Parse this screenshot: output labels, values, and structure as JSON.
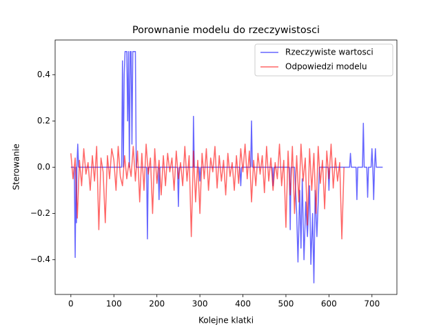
{
  "chart_data": {
    "type": "line",
    "title": "Porownanie modelu do rzeczywistosci",
    "x_label": "Kolejne klatki",
    "y_label": "Sterowanie",
    "xlim": [
      -36.6,
      758
    ],
    "ylim": [
      -0.55,
      0.55
    ],
    "xticks": [
      0,
      100,
      200,
      300,
      400,
      500,
      600,
      700
    ],
    "yticks": [
      {
        "value": -0.4,
        "label": "−0.4"
      },
      {
        "value": -0.2,
        "label": "−0.2"
      },
      {
        "value": 0,
        "label": "0.0"
      },
      {
        "value": 0.2,
        "label": "0.2"
      },
      {
        "value": 0.4,
        "label": "0.4"
      }
    ],
    "legend": "upper right",
    "series": [
      {
        "name": "Rzeczywiste wartosci",
        "color": "#0000ff",
        "x": [
          0,
          8,
          10,
          12,
          13,
          14,
          16,
          18,
          118,
          120,
          122,
          124,
          126,
          130,
          132,
          134,
          136,
          138,
          140,
          142,
          144,
          150,
          152,
          176,
          178,
          180,
          203,
          205,
          207,
          248,
          250,
          252,
          284,
          285,
          287,
          298,
          300,
          302,
          393,
          395,
          397,
          418,
          420,
          422,
          468,
          470,
          472,
          508,
          510,
          512,
          520,
          525,
          528,
          532,
          535,
          538,
          542,
          546,
          550,
          555,
          558,
          562,
          565,
          568,
          572,
          578,
          598,
          600,
          602,
          648,
          650,
          652,
          663,
          665,
          667,
          678,
          680,
          682,
          688,
          690,
          692,
          698,
          700,
          702,
          704,
          706,
          708,
          710,
          725
        ],
        "values": [
          0,
          0,
          -0.39,
          0,
          -0.24,
          0,
          0.1,
          0,
          0,
          0.46,
          0,
          0.4,
          0.5,
          0.5,
          0.2,
          0.5,
          0,
          0.5,
          0.5,
          0.1,
          0.5,
          0.5,
          0,
          0,
          -0.31,
          0,
          0,
          -0.14,
          0,
          0,
          -0.17,
          0,
          0,
          0.22,
          0,
          0,
          -0.06,
          0,
          0,
          -0.08,
          0,
          0,
          0.2,
          0,
          0,
          -0.08,
          0,
          0,
          -0.27,
          0,
          0,
          -0.2,
          -0.41,
          -0.1,
          -0.35,
          -0.05,
          -0.4,
          -0.15,
          -0.3,
          -0.08,
          -0.42,
          -0.2,
          -0.5,
          -0.1,
          -0.3,
          0,
          0,
          -0.1,
          0,
          0,
          0.06,
          0,
          0,
          -0.14,
          0,
          0,
          0.19,
          0,
          0,
          -0.13,
          0,
          0,
          0.08,
          0,
          -0.14,
          0,
          0.08,
          0,
          0
        ]
      },
      {
        "name": "Odpowiedzi modelu",
        "color": "#ff0000",
        "x": [
          0,
          5,
          10,
          15,
          20,
          25,
          30,
          35,
          40,
          45,
          50,
          55,
          60,
          65,
          70,
          75,
          80,
          85,
          90,
          95,
          100,
          105,
          110,
          115,
          120,
          125,
          130,
          135,
          140,
          145,
          150,
          155,
          160,
          165,
          170,
          175,
          180,
          185,
          190,
          195,
          200,
          205,
          210,
          215,
          220,
          225,
          230,
          235,
          240,
          245,
          250,
          255,
          260,
          265,
          270,
          275,
          280,
          285,
          290,
          295,
          300,
          305,
          310,
          315,
          320,
          325,
          330,
          335,
          340,
          345,
          350,
          355,
          360,
          365,
          370,
          375,
          380,
          385,
          390,
          395,
          400,
          405,
          410,
          415,
          420,
          425,
          430,
          435,
          440,
          445,
          450,
          455,
          460,
          465,
          470,
          475,
          480,
          485,
          490,
          495,
          500,
          505,
          510,
          515,
          520,
          525,
          530,
          535,
          540,
          545,
          550,
          555,
          560,
          565,
          570,
          575,
          580,
          585,
          590,
          595,
          600,
          605,
          610,
          615,
          620,
          625,
          630,
          635
        ],
        "values": [
          0.06,
          -0.05,
          0.04,
          -0.22,
          0.03,
          -0.08,
          0.08,
          -0.03,
          0.02,
          -0.1,
          0.05,
          -0.06,
          0.09,
          -0.27,
          0.04,
          -0.02,
          -0.24,
          0.05,
          -0.05,
          0.08,
          0.03,
          -0.1,
          0.09,
          -0.04,
          -0.08,
          0.05,
          -0.05,
          0.02,
          -0.04,
          0.09,
          -0.06,
          0.07,
          -0.15,
          0.06,
          -0.1,
          0.1,
          -0.03,
          0.04,
          -0.2,
          0.08,
          -0.07,
          0.03,
          -0.12,
          0.05,
          -0.08,
          0.06,
          -0.02,
          0.04,
          -0.1,
          0.07,
          -0.05,
          0.02,
          -0.08,
          0.09,
          -0.06,
          0.05,
          -0.3,
          0.07,
          -0.15,
          0.03,
          -0.2,
          0.06,
          -0.05,
          0.08,
          -0.1,
          0.04,
          -0.02,
          0.09,
          -0.09,
          0.05,
          -0.06,
          0.03,
          -0.12,
          0.06,
          -0.04,
          0.02,
          -0.1,
          0.05,
          -0.07,
          0.08,
          -0.02,
          0.1,
          -0.05,
          0.07,
          -0.15,
          0.03,
          -0.08,
          0.06,
          -0.03,
          0.05,
          -0.11,
          0.09,
          -0.06,
          0.04,
          -0.1,
          0.02,
          -0.05,
          0.1,
          -0.08,
          0.03,
          -0.26,
          0.07,
          -0.12,
          0.09,
          -0.2,
          0.05,
          -0.15,
          0.1,
          -0.06,
          0.04,
          -0.25,
          0.08,
          -0.1,
          0.06,
          -0.2,
          0.09,
          -0.07,
          0.03,
          -0.18,
          0.07,
          -0.05,
          0.1,
          -0.09,
          0.04,
          -0.06,
          0.02,
          -0.31,
          0.0
        ]
      }
    ]
  }
}
